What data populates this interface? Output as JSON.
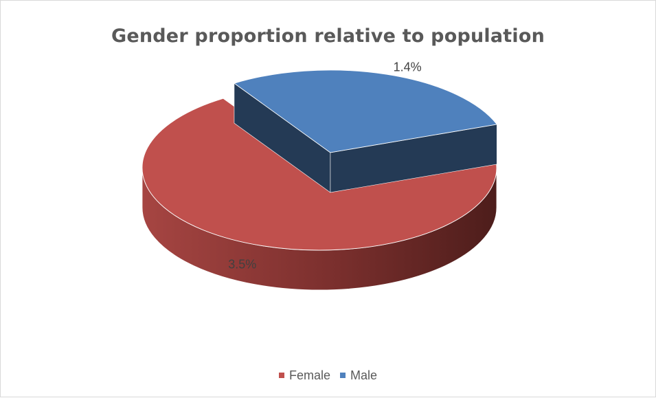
{
  "chart_data": {
    "type": "pie",
    "title": "Gender proportion relative to population",
    "three_d": true,
    "exploded_slice": "Male",
    "legend_position": "bottom",
    "slices": [
      {
        "label": "Female",
        "value": 3.5,
        "data_label": "3.5%",
        "color": "#C0504D"
      },
      {
        "label": "Male",
        "value": 1.4,
        "data_label": "1.4%",
        "color": "#4F81BD"
      }
    ]
  }
}
